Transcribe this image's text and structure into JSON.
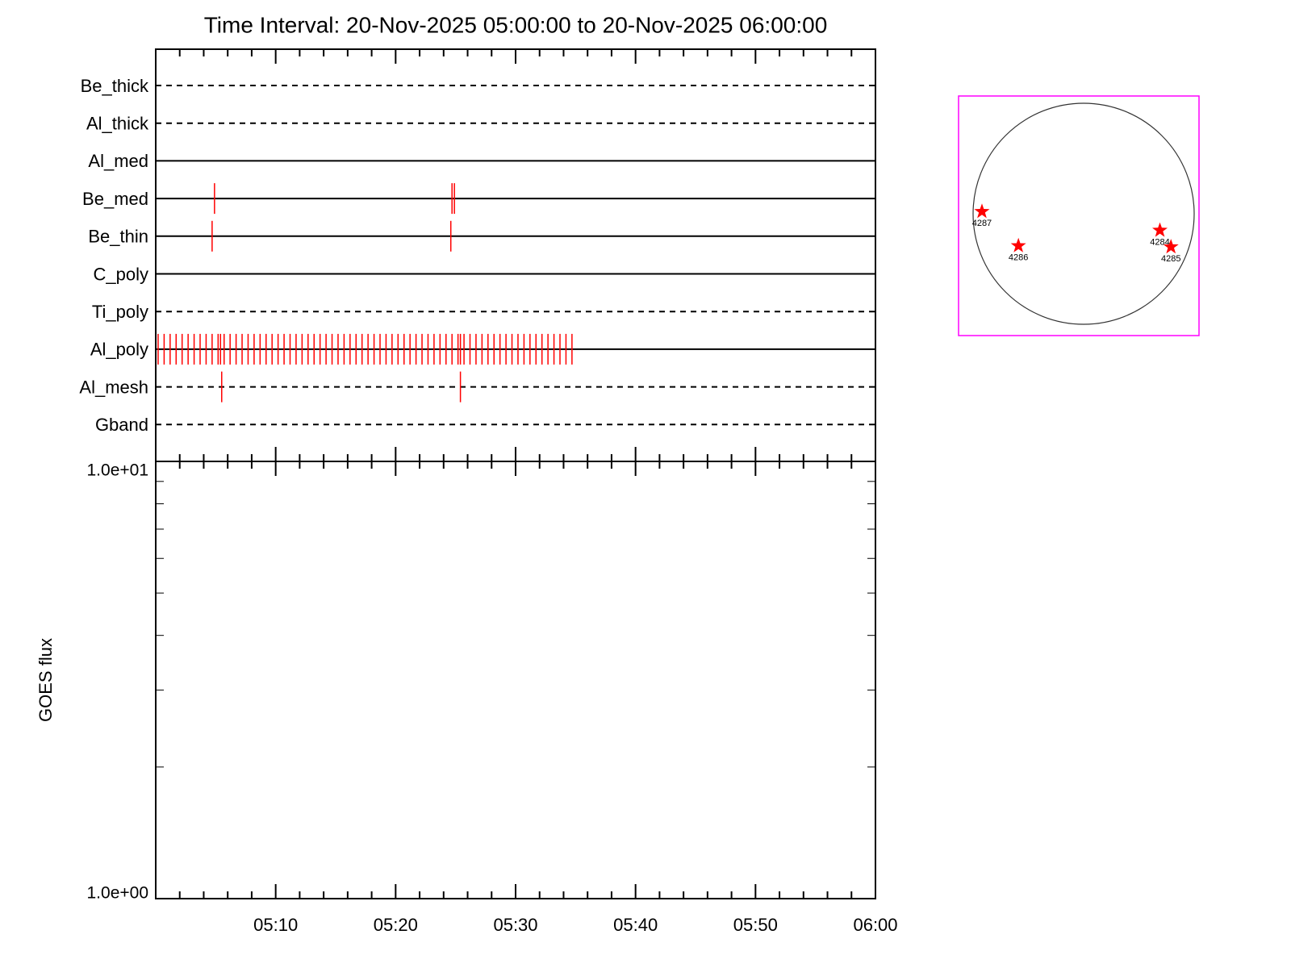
{
  "chart_data": [
    {
      "type": "timeline",
      "title": "Time Interval: 20-Nov-2025 05:00:00 to 20-Nov-2025 06:00:00",
      "xlim": [
        0,
        60
      ],
      "xticks": [
        0,
        10,
        20,
        30,
        40,
        50,
        60
      ],
      "xminor": [
        2,
        4,
        6,
        8,
        12,
        14,
        16,
        18,
        22,
        24,
        26,
        28,
        32,
        34,
        36,
        38,
        42,
        44,
        46,
        48,
        52,
        54,
        56,
        58
      ],
      "color": "#ff0000",
      "rows": [
        {
          "name": "Be_thick",
          "dashed": true,
          "events": []
        },
        {
          "name": "Al_thick",
          "dashed": true,
          "events": []
        },
        {
          "name": "Al_med",
          "dashed": false,
          "events": []
        },
        {
          "name": "Be_med",
          "dashed": false,
          "events": [
            4.9,
            24.7,
            24.9
          ]
        },
        {
          "name": "Be_thin",
          "dashed": false,
          "events": [
            4.7,
            24.6
          ]
        },
        {
          "name": "C_poly",
          "dashed": false,
          "events": []
        },
        {
          "name": "Ti_poly",
          "dashed": true,
          "events": []
        },
        {
          "name": "Al_poly",
          "dashed": false,
          "events": [
            0.2,
            0.7,
            1.2,
            1.7,
            2.2,
            2.7,
            3.2,
            3.7,
            4.2,
            4.7,
            5.2,
            5.7,
            6.2,
            6.7,
            7.2,
            7.7,
            8.2,
            8.7,
            9.2,
            9.7,
            10.2,
            10.7,
            11.2,
            11.7,
            12.2,
            12.7,
            13.2,
            13.7,
            14.2,
            14.7,
            15.2,
            15.7,
            16.2,
            16.7,
            17.2,
            17.7,
            18.2,
            18.7,
            19.2,
            19.7,
            20.2,
            20.7,
            21.2,
            21.7,
            22.2,
            22.7,
            23.2,
            23.7,
            24.2,
            24.7,
            25.2,
            25.7,
            26.2,
            26.7,
            27.2,
            27.7,
            28.2,
            28.7,
            29.2,
            29.7,
            30.2,
            30.7,
            31.2,
            31.7,
            32.2,
            32.7,
            33.2,
            33.7,
            34.2,
            34.7,
            5.4,
            25.4
          ]
        },
        {
          "name": "Al_mesh",
          "dashed": true,
          "events": [
            5.5,
            25.4
          ]
        },
        {
          "name": "Gband",
          "dashed": true,
          "events": []
        }
      ]
    },
    {
      "type": "line",
      "ylabel": "GOES flux",
      "log_y": true,
      "ylim": [
        1,
        10
      ],
      "yticks": [
        {
          "value": 1,
          "label": "1.0e+00"
        },
        {
          "value": 10,
          "label": "1.0e+01"
        }
      ],
      "yminor": [
        2,
        3,
        4,
        5,
        6,
        7,
        8,
        9
      ],
      "xlim": [
        0,
        60
      ],
      "xticks": [
        {
          "value": 10,
          "label": "05:10"
        },
        {
          "value": 20,
          "label": "05:20"
        },
        {
          "value": 30,
          "label": "05:30"
        },
        {
          "value": 40,
          "label": "05:40"
        },
        {
          "value": 50,
          "label": "05:50"
        },
        {
          "value": 60,
          "label": "06:00"
        }
      ],
      "xminor": [
        2,
        4,
        6,
        8,
        12,
        14,
        16,
        18,
        22,
        24,
        26,
        28,
        32,
        34,
        36,
        38,
        42,
        44,
        46,
        48,
        52,
        54,
        56,
        58
      ]
    },
    {
      "type": "map",
      "frame_color": "#ff00ff",
      "marker_color": "#ff0000",
      "regions": [
        {
          "label": "4287",
          "x": -0.92,
          "y": 0.02
        },
        {
          "label": "4286",
          "x": -0.59,
          "y": -0.29
        },
        {
          "label": "4284",
          "x": 0.69,
          "y": -0.15
        },
        {
          "label": "4285",
          "x": 0.79,
          "y": -0.3
        }
      ]
    }
  ]
}
